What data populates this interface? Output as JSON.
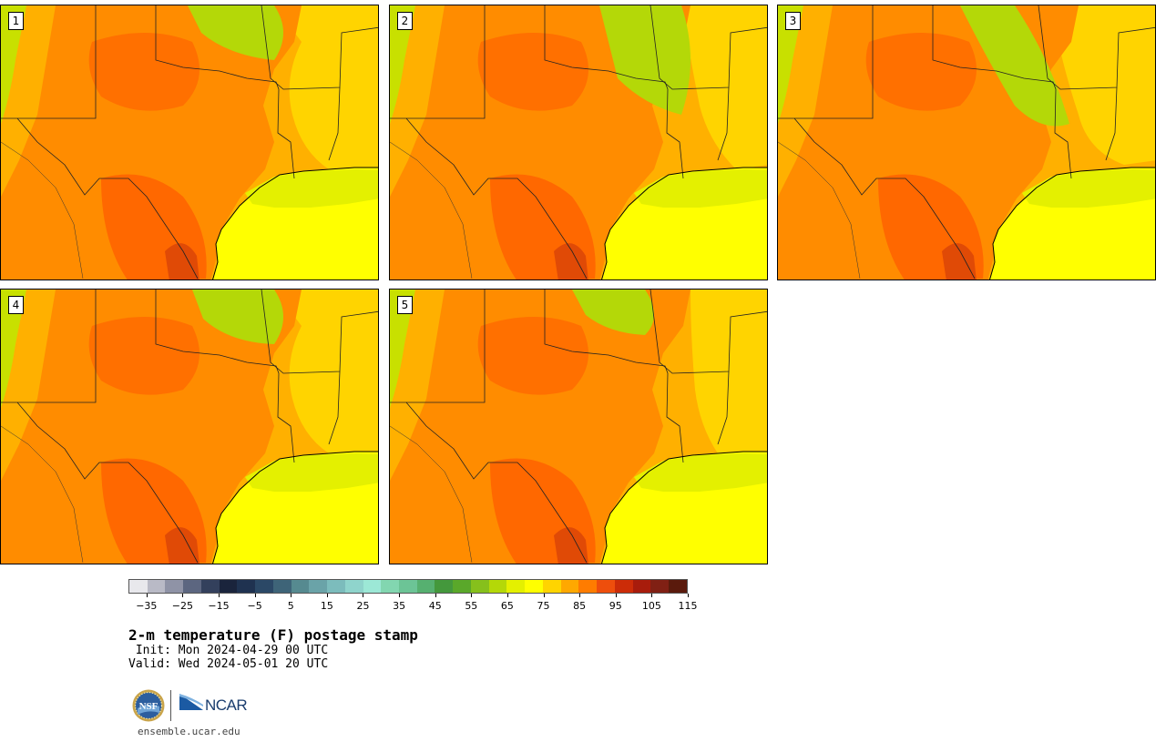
{
  "panels": [
    {
      "label": "1"
    },
    {
      "label": "2"
    },
    {
      "label": "3"
    },
    {
      "label": "4"
    },
    {
      "label": "5"
    }
  ],
  "colorbar": {
    "colors": [
      "#e8e8ec",
      "#b9bac6",
      "#8f93a6",
      "#5c6680",
      "#33405c",
      "#1a243c",
      "#1f3250",
      "#2b4866",
      "#3e6478",
      "#568a90",
      "#6aa3a8",
      "#7cbcbc",
      "#8fd4cc",
      "#9ce8d6",
      "#82d6b0",
      "#6cc496",
      "#56b070",
      "#44983c",
      "#5aa82a",
      "#86c01c",
      "#b4d808",
      "#e4f000",
      "#ffff00",
      "#ffd400",
      "#ffa800",
      "#ff7c00",
      "#ee4e0c",
      "#cc2c08",
      "#a81c0c",
      "#802014",
      "#5a1a0c"
    ],
    "tick_labels": [
      "−35",
      "−25",
      "−15",
      "−5",
      "5",
      "15",
      "25",
      "35",
      "45",
      "55",
      "65",
      "75",
      "85",
      "95",
      "105",
      "115"
    ]
  },
  "title": "2-m temperature (F) postage stamp",
  "init_text": " Init: Mon 2024-04-29 00 UTC",
  "valid_text": "Valid: Wed 2024-05-01 20 UTC",
  "logos": {
    "nsf": "NSF",
    "ncar": "NCAR"
  },
  "site": "ensemble.ucar.edu"
}
